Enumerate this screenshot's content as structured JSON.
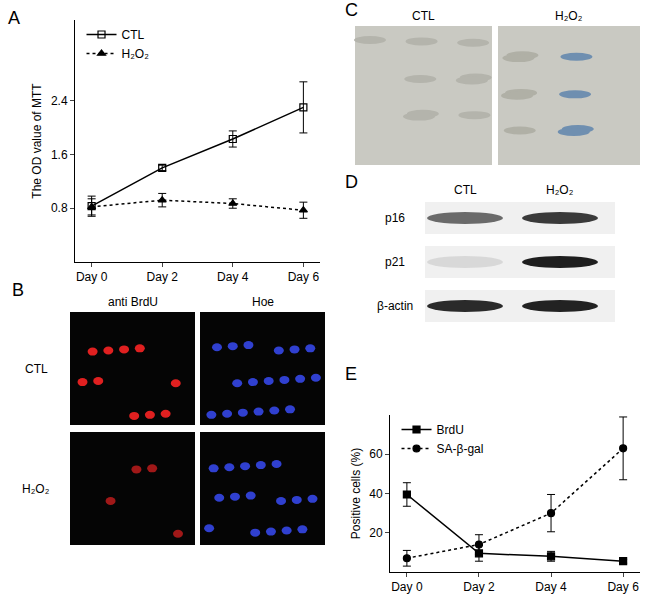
{
  "chart_data": [
    {
      "type": "line",
      "annotations": [
        "A"
      ],
      "ylabel": "The OD value of MTT",
      "categories": [
        "Day 0",
        "Day 2",
        "Day 4",
        "Day 6"
      ],
      "series": [
        {
          "name": "CTL",
          "color": "#000000",
          "marker": "open-square",
          "line_style": "solid",
          "values": [
            0.83,
            1.4,
            1.83,
            2.3
          ],
          "error": [
            0.15,
            0.04,
            0.12,
            0.38
          ]
        },
        {
          "name": "H₂O₂",
          "color": "#000000",
          "marker": "triangle",
          "line_style": "dotted",
          "values": [
            0.82,
            0.92,
            0.87,
            0.77
          ],
          "error": [
            0.12,
            0.1,
            0.07,
            0.12
          ]
        }
      ],
      "ylim": [
        0,
        3.6
      ],
      "yticks": [
        0.8,
        1.6,
        2.4
      ],
      "legend": "upper left",
      "grid": false
    },
    {
      "type": "line",
      "annotations": [
        "E"
      ],
      "ylabel": "Positive cells (%)",
      "categories": [
        "Day 0",
        "Day 2",
        "Day 4",
        "Day 6"
      ],
      "series": [
        {
          "name": "BrdU",
          "color": "#000000",
          "marker": "square",
          "line_style": "solid",
          "values": [
            39.5,
            9.5,
            8,
            5.5
          ],
          "error": [
            6,
            4,
            2.5,
            1
          ]
        },
        {
          "name": "SA-β-gal",
          "color": "#000000",
          "marker": "circle",
          "line_style": "dotted",
          "values": [
            7,
            14,
            30,
            63
          ],
          "error": [
            4,
            5,
            9.5,
            16
          ]
        }
      ],
      "ylim": [
        0,
        80
      ],
      "yticks": [
        20,
        40,
        60
      ],
      "legend": "upper left",
      "grid": false
    }
  ],
  "image_panels": [
    {
      "label": "B",
      "columns": [
        "anti BrdU",
        "Hoe"
      ],
      "rows": [
        "CTL",
        "H₂O₂"
      ]
    },
    {
      "label": "C",
      "columns": [
        "CTL",
        "H₂O₂"
      ]
    },
    {
      "label": "D",
      "columns": [
        "CTL",
        "H₂O₂"
      ],
      "rows": [
        "p16",
        "p21",
        "β-actin"
      ]
    }
  ]
}
